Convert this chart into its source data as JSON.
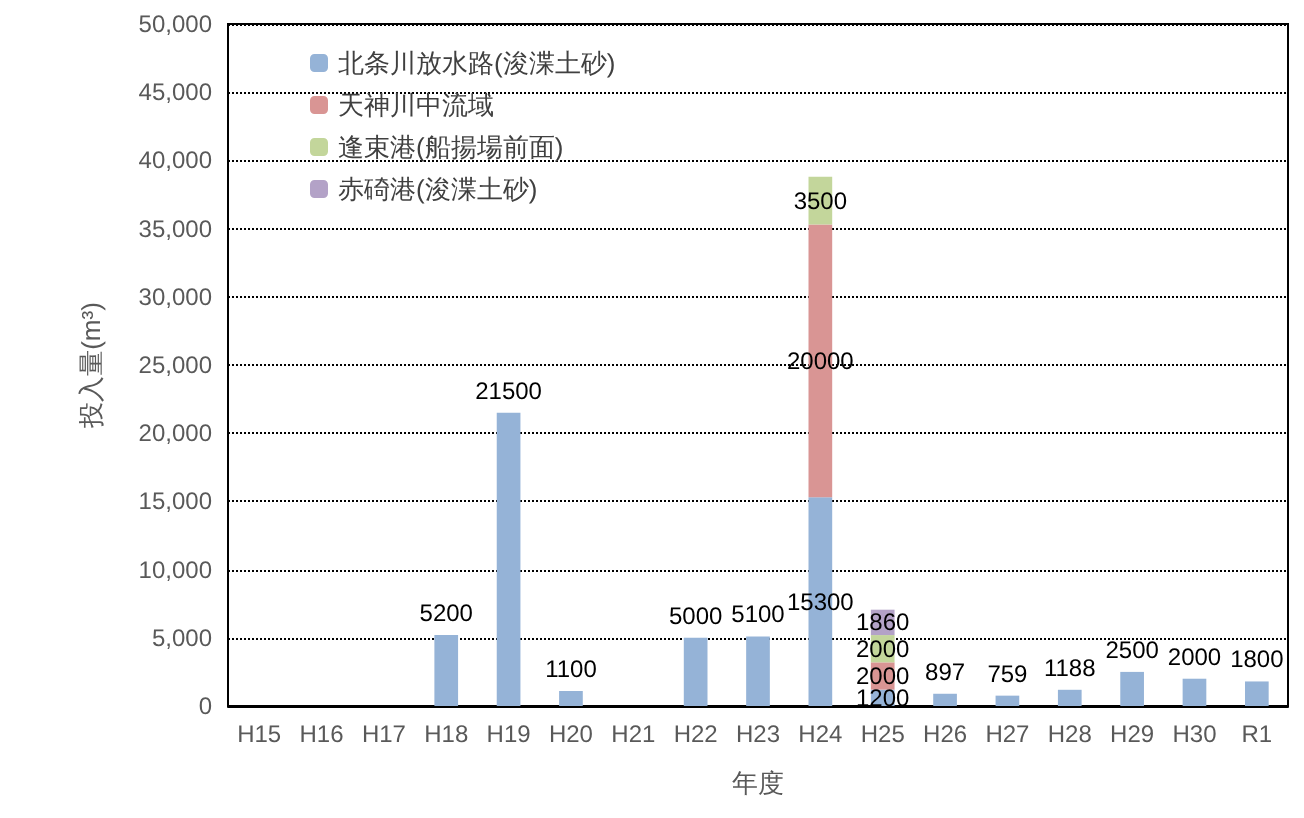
{
  "chart_data": {
    "type": "bar",
    "stacked": true,
    "xlabel": "年度",
    "ylabel": "投入量(m³)",
    "categories": [
      "H15",
      "H16",
      "H17",
      "H18",
      "H19",
      "H20",
      "H21",
      "H22",
      "H23",
      "H24",
      "H25",
      "H26",
      "H27",
      "H28",
      "H29",
      "H30",
      "R1"
    ],
    "series": [
      {
        "name": "北条川放水路(浚渫土砂)",
        "color": "#95b3d7",
        "values": [
          null,
          null,
          null,
          5200,
          21500,
          1100,
          null,
          5000,
          5100,
          15300,
          1200,
          897,
          759,
          1188,
          2500,
          2000,
          1800
        ]
      },
      {
        "name": "天神川中流域",
        "color": "#d99594",
        "values": [
          null,
          null,
          null,
          null,
          null,
          null,
          null,
          null,
          null,
          20000,
          2000,
          null,
          null,
          null,
          null,
          null,
          null
        ]
      },
      {
        "name": "逢束港(船揚場前面)",
        "color": "#c3d69b",
        "values": [
          null,
          null,
          null,
          null,
          null,
          null,
          null,
          null,
          null,
          3500,
          2000,
          null,
          null,
          null,
          null,
          null,
          null
        ]
      },
      {
        "name": "赤碕港(浚渫土砂)",
        "color": "#b3a2c7",
        "values": [
          null,
          null,
          null,
          null,
          null,
          null,
          null,
          null,
          null,
          null,
          1860,
          null,
          null,
          null,
          null,
          null,
          null
        ]
      }
    ],
    "ylim": [
      0,
      50000
    ],
    "yticks": [
      0,
      {
        "value": 5000,
        "label": "5,000"
      },
      {
        "value": 10000,
        "label": "10,000"
      },
      {
        "value": 15000,
        "label": "15,000"
      },
      {
        "value": 20000,
        "label": "20,000"
      },
      {
        "value": 25000,
        "label": "25,000"
      },
      {
        "value": 30000,
        "label": "30,000"
      },
      {
        "value": 35000,
        "label": "35,000"
      },
      {
        "value": 40000,
        "label": "40,000"
      },
      {
        "value": 45000,
        "label": "45,000"
      },
      {
        "value": 50000,
        "label": "50,000"
      }
    ],
    "grid": "y",
    "legend": "top left",
    "data_labels": true
  }
}
